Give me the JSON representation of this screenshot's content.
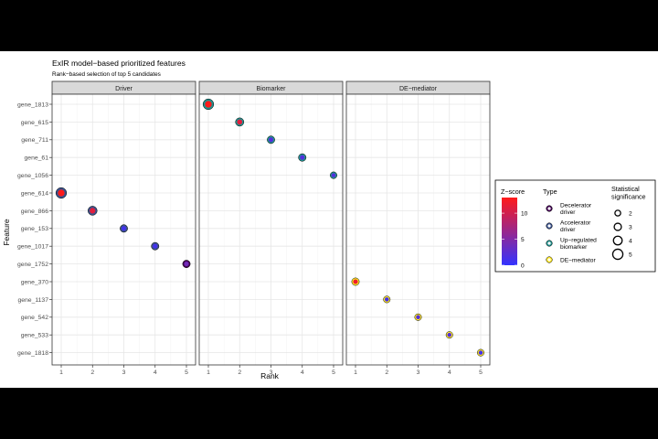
{
  "chart_data": {
    "type": "scatter",
    "title": "ExIR model−based prioritized features",
    "subtitle": "Rank−based selection of top 5 candidates",
    "xlabel": "Rank",
    "ylabel": "Feature",
    "xlim": [
      1,
      5
    ],
    "x_ticks": [
      1,
      2,
      3,
      4,
      5
    ],
    "features": [
      "gene_1813",
      "gene_615",
      "gene_711",
      "gene_61",
      "gene_1056",
      "gene_614",
      "gene_866",
      "gene_153",
      "gene_1017",
      "gene_1752",
      "gene_370",
      "gene_1137",
      "gene_542",
      "gene_533",
      "gene_1818"
    ],
    "grid": true,
    "panels": [
      {
        "name": "Driver",
        "points": [
          {
            "feature": "gene_614",
            "rank": 1,
            "type": "Accelerator driver",
            "z": 13,
            "significance": 5
          },
          {
            "feature": "gene_866",
            "rank": 2,
            "type": "Accelerator driver",
            "z": 11,
            "significance": 4
          },
          {
            "feature": "gene_153",
            "rank": 3,
            "type": "Accelerator driver",
            "z": 1,
            "significance": 3
          },
          {
            "feature": "gene_1017",
            "rank": 4,
            "type": "Accelerator driver",
            "z": 1,
            "significance": 3
          },
          {
            "feature": "gene_1752",
            "rank": 5,
            "type": "Decelerator driver",
            "z": 4,
            "significance": 3
          }
        ]
      },
      {
        "name": "Biomarker",
        "points": [
          {
            "feature": "gene_1813",
            "rank": 1,
            "type": "Up−regulated biomarker",
            "z": 13,
            "significance": 5
          },
          {
            "feature": "gene_615",
            "rank": 2,
            "type": "Up−regulated biomarker",
            "z": 11,
            "significance": 3.5
          },
          {
            "feature": "gene_711",
            "rank": 3,
            "type": "Up−regulated biomarker",
            "z": 2,
            "significance": 3
          },
          {
            "feature": "gene_61",
            "rank": 4,
            "type": "Up−regulated biomarker",
            "z": 2,
            "significance": 3
          },
          {
            "feature": "gene_1056",
            "rank": 5,
            "type": "Up−regulated biomarker",
            "z": 2,
            "significance": 2.5
          }
        ]
      },
      {
        "name": "DE−mediator",
        "points": [
          {
            "feature": "gene_370",
            "rank": 1,
            "type": "DE−mediator",
            "z": 12,
            "significance": 3
          },
          {
            "feature": "gene_1137",
            "rank": 2,
            "type": "DE−mediator",
            "z": 1,
            "significance": 2.5
          },
          {
            "feature": "gene_542",
            "rank": 3,
            "type": "DE−mediator",
            "z": 2,
            "significance": 2.5
          },
          {
            "feature": "gene_533",
            "rank": 4,
            "type": "DE−mediator",
            "z": 2,
            "significance": 2.5
          },
          {
            "feature": "gene_1818",
            "rank": 5,
            "type": "DE−mediator",
            "z": 1,
            "significance": 2.5
          }
        ]
      }
    ],
    "legend": {
      "placement": "right",
      "zscore": {
        "title": "Z−score",
        "range": [
          0,
          13
        ],
        "ticks": [
          "0",
          "5",
          "10"
        ],
        "low_color": "#3333ff",
        "high_color": "#ff1a1a"
      },
      "type": {
        "title": "Type",
        "items": [
          {
            "label": "Decelerator driver",
            "lines": [
              "Decelerator",
              "driver"
            ],
            "color": "#440154"
          },
          {
            "label": "Accelerator driver",
            "lines": [
              "Accelerator",
              "driver"
            ],
            "color": "#3b528b"
          },
          {
            "label": "Up−regulated biomarker",
            "lines": [
              "Up−regulated",
              "biomarker"
            ],
            "color": "#21908c"
          },
          {
            "label": "DE−mediator",
            "lines": [
              "DE−mediator"
            ],
            "color": "#fde725"
          }
        ]
      },
      "significance": {
        "title_lines": [
          "Statistical",
          "significance"
        ],
        "levels": [
          2,
          3,
          4,
          5
        ],
        "labels": [
          "2",
          "3",
          "4",
          "5"
        ]
      }
    }
  }
}
